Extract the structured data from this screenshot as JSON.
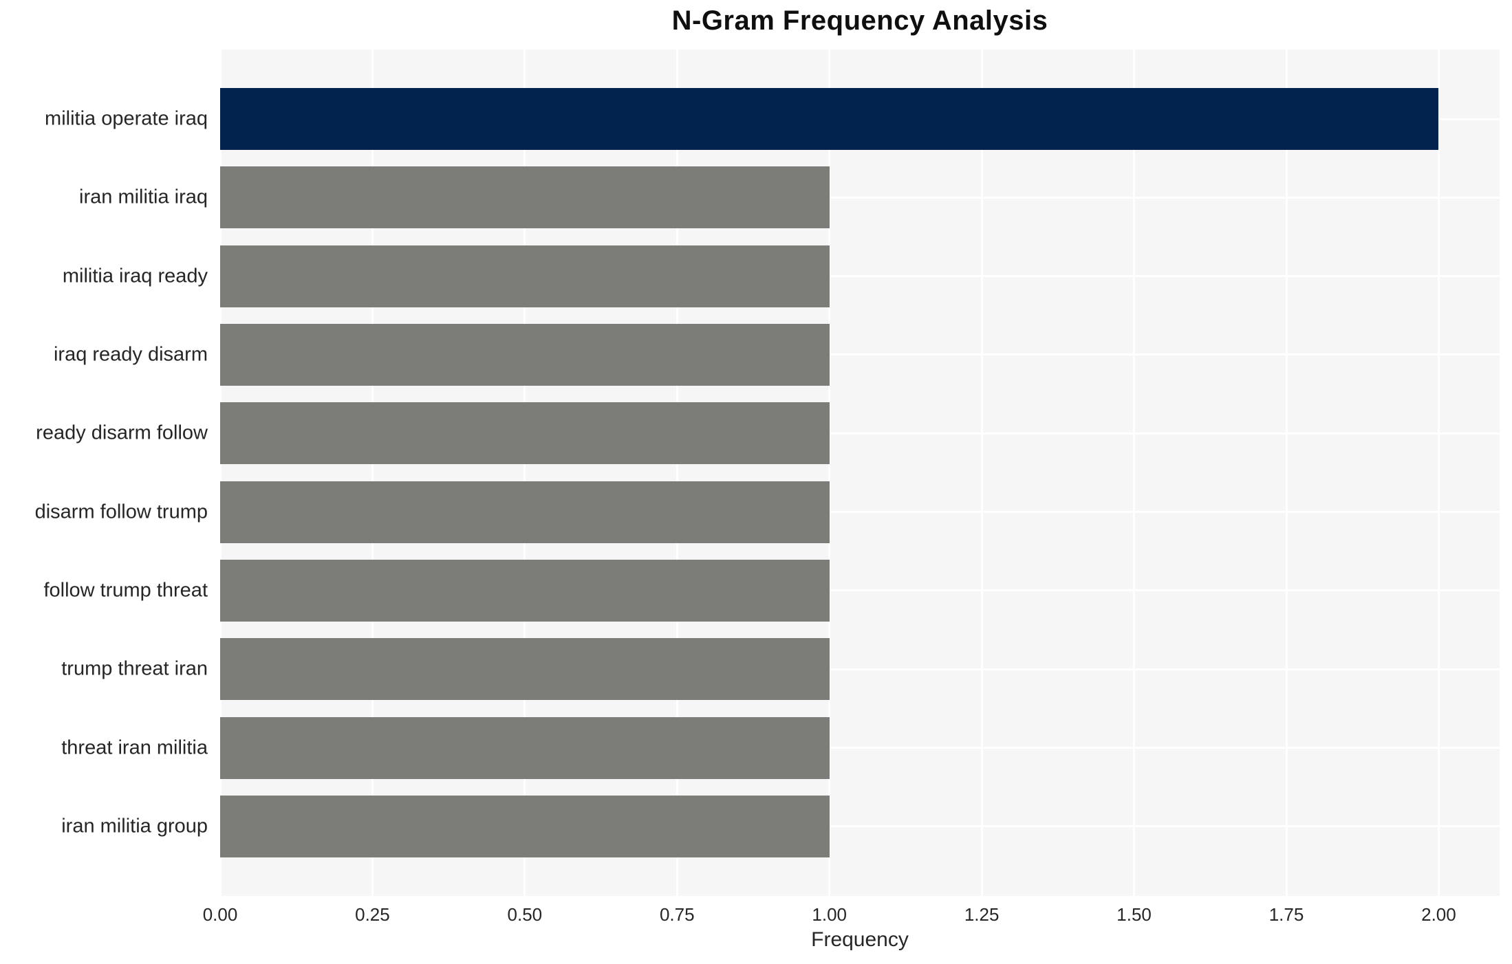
{
  "chart_data": {
    "type": "bar",
    "orientation": "horizontal",
    "title": "N-Gram Frequency Analysis",
    "xlabel": "Frequency",
    "ylabel": "",
    "categories": [
      "militia operate iraq",
      "iran militia iraq",
      "militia iraq ready",
      "iraq ready disarm",
      "ready disarm follow",
      "disarm follow trump",
      "follow trump threat",
      "trump threat iran",
      "threat iran militia",
      "iran militia group"
    ],
    "values": [
      2,
      1,
      1,
      1,
      1,
      1,
      1,
      1,
      1,
      1
    ],
    "bar_colors": [
      "#02234d",
      "#7c7c78",
      "#7c7c78",
      "#7c7c78",
      "#7c7c78",
      "#7c7c78",
      "#7c7c78",
      "#7c7c78",
      "#7c7c78",
      "#7c7c78"
    ],
    "xlim": [
      0,
      2.1
    ],
    "xtick_values": [
      0,
      0.25,
      0.5,
      0.75,
      1.0,
      1.25,
      1.5,
      1.75,
      2.0
    ],
    "xtick_labels": [
      "0.00",
      "0.25",
      "0.50",
      "0.75",
      "1.00",
      "1.25",
      "1.50",
      "1.75",
      "2.00"
    ],
    "grid": true,
    "legend": false,
    "colors": {
      "highlight_bar": "#02234d",
      "default_bar": "#7c7c78",
      "plot_background": "#f6f6f6",
      "gridline": "#ffffff",
      "tick_text": "#262626",
      "title_text": "#0f0f0f"
    }
  }
}
